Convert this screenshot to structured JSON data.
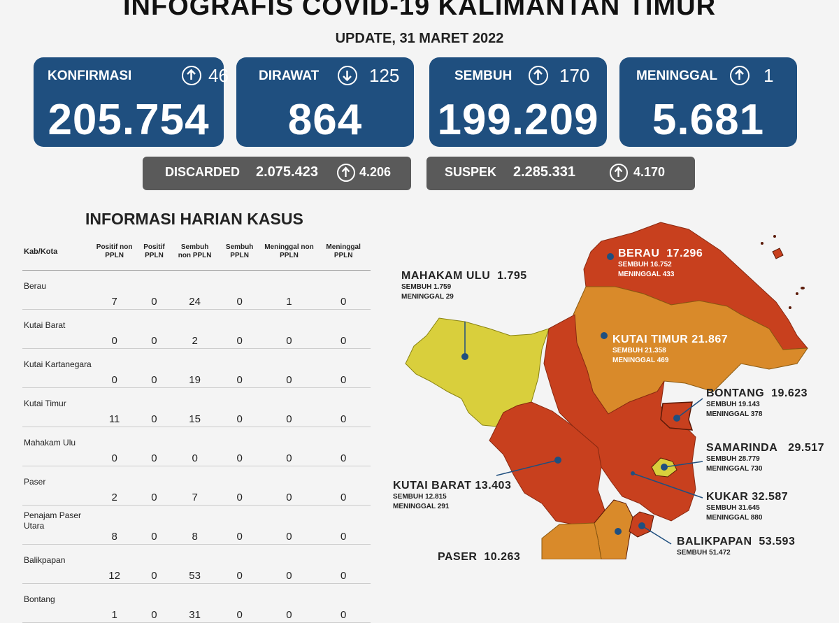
{
  "header": {
    "title": "INFOGRAFIS COVID-19 KALIMANTAN TIMUR",
    "update": "UPDATE, 31 MARET 2022"
  },
  "cards": [
    {
      "label": "KONFIRMASI",
      "delta": "46",
      "direction": "up",
      "value": "205.754"
    },
    {
      "label": "DIRAWAT",
      "delta": "125",
      "direction": "down",
      "value": "864"
    },
    {
      "label": "SEMBUH",
      "delta": "170",
      "direction": "up",
      "value": "199.209"
    },
    {
      "label": "MENINGGAL",
      "delta": "1",
      "direction": "up",
      "value": "5.681"
    }
  ],
  "summary": {
    "discarded": {
      "label": "DISCARDED",
      "value": "2.075.423",
      "delta": "4.206"
    },
    "suspek": {
      "label": "SUSPEK",
      "value": "2.285.331",
      "delta": "4.170"
    }
  },
  "table": {
    "title": "INFORMASI HARIAN KASUS",
    "headers": [
      "Kab/Kota",
      "Positif non PPLN",
      "Positif PPLN",
      "Sembuh non PPLN",
      "Sembuh PPLN",
      "Meninggal non PPLN",
      "Meninggal PPLN"
    ],
    "rows": [
      {
        "name": "Berau",
        "values": [
          "7",
          "0",
          "24",
          "0",
          "1",
          "0"
        ]
      },
      {
        "name": "Kutai Barat",
        "values": [
          "0",
          "0",
          "2",
          "0",
          "0",
          "0"
        ]
      },
      {
        "name": "Kutai Kartanegara",
        "values": [
          "0",
          "0",
          "19",
          "0",
          "0",
          "0"
        ]
      },
      {
        "name": "Kutai Timur",
        "values": [
          "11",
          "0",
          "15",
          "0",
          "0",
          "0"
        ]
      },
      {
        "name": "Mahakam Ulu",
        "values": [
          "0",
          "0",
          "0",
          "0",
          "0",
          "0"
        ]
      },
      {
        "name": "Paser",
        "values": [
          "2",
          "0",
          "7",
          "0",
          "0",
          "0"
        ]
      },
      {
        "name": "Penajam Paser Utara",
        "values": [
          "8",
          "0",
          "8",
          "0",
          "0",
          "0"
        ]
      },
      {
        "name": "Balikpapan",
        "values": [
          "12",
          "0",
          "53",
          "0",
          "0",
          "0"
        ]
      },
      {
        "name": "Bontang",
        "values": [
          "1",
          "0",
          "31",
          "0",
          "0",
          "0"
        ]
      }
    ]
  },
  "map": {
    "regions": [
      {
        "name": "BERAU",
        "total": "17.296",
        "sembuh": "SEMBUH 16.752",
        "meninggal": "MENINGGAL 433"
      },
      {
        "name": "MAHAKAM ULU",
        "total": "1.795",
        "sembuh": "SEMBUH 1.759",
        "meninggal": "MENINGGAL 29"
      },
      {
        "name": "KUTAI TIMUR",
        "total": "21.867",
        "sembuh": "SEMBUH 21.358",
        "meninggal": "MENINGGAL 469"
      },
      {
        "name": "BONTANG",
        "total": "19.623",
        "sembuh": "SEMBUH 19.143",
        "meninggal": "MENINGGAL 378"
      },
      {
        "name": "SAMARINDA",
        "total": "29.517",
        "sembuh": "SEMBUH 28.779",
        "meninggal": "MENINGGAL 730"
      },
      {
        "name": "KUKAR",
        "total": "32.587",
        "sembuh": "SEMBUH 31.645",
        "meninggal": "MENINGGAL 880"
      },
      {
        "name": "KUTAI BARAT",
        "total": "13.403",
        "sembuh": "SEMBUH 12.815",
        "meninggal": "MENINGGAL 291"
      },
      {
        "name": "BALIKPAPAN",
        "total": "53.593",
        "sembuh": "SEMBUH 51.472"
      },
      {
        "name": "PASER",
        "total": "10.263"
      }
    ],
    "colors": {
      "red": "#c8401e",
      "orange": "#d98a2a",
      "yellow": "#d9cf3c",
      "dot": "#1f4f7f"
    }
  },
  "colors": {
    "card_bg": "#1f4f7f",
    "bar_bg": "#5a5a5a"
  }
}
